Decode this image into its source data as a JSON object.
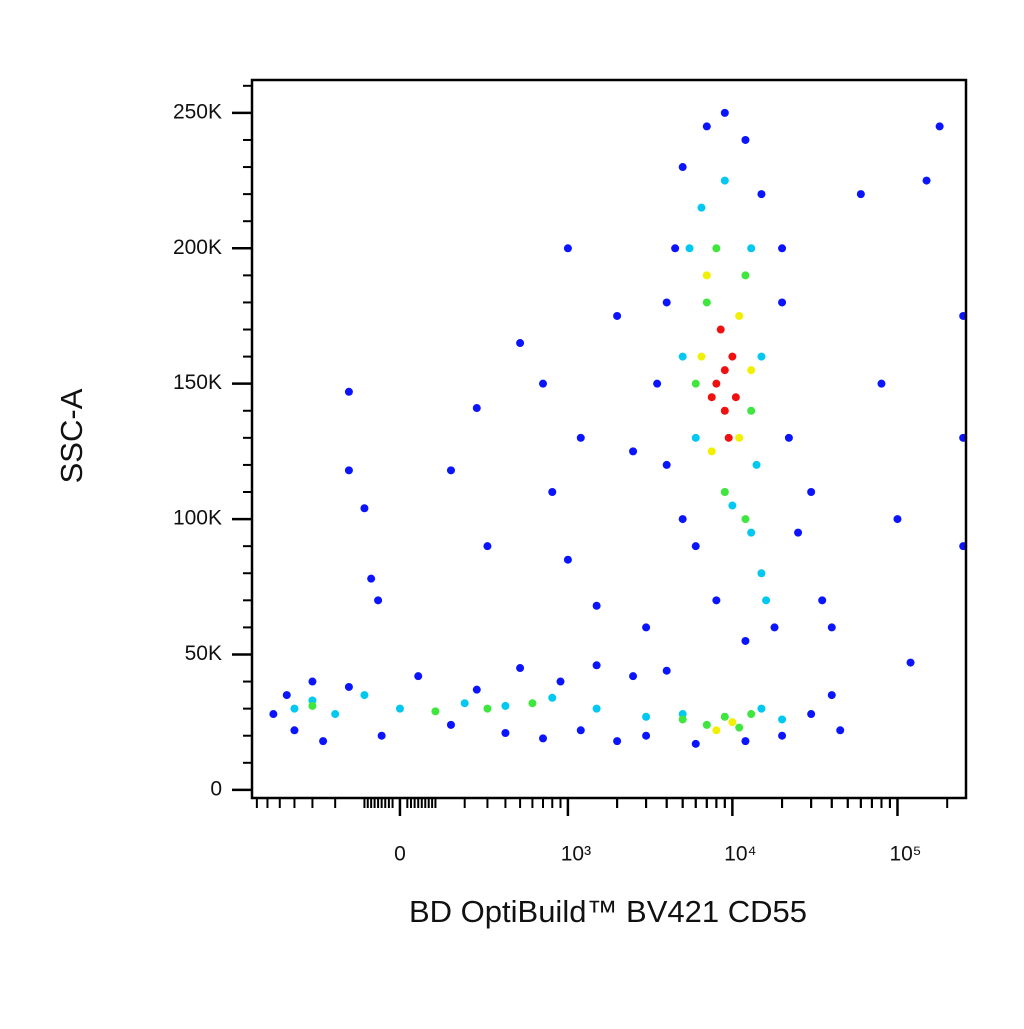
{
  "chart_data": {
    "type": "scatter",
    "xlabel": "BD OptiBuild™ BV421 CD55",
    "ylabel": "SSC-A",
    "xscale": "biexponential",
    "xlim": [
      -751,
      260000
    ],
    "ylim": [
      -3000,
      262144
    ],
    "xticks": [
      0,
      {
        "value": 1000,
        "label": "10³"
      },
      {
        "value": 10000,
        "label": "10⁴"
      },
      {
        "value": 100000,
        "label": "10⁵"
      }
    ],
    "yticks": [
      0,
      {
        "value": 50000,
        "label": "50K"
      },
      {
        "value": 100000,
        "label": "100K"
      },
      {
        "value": 150000,
        "label": "150K"
      },
      {
        "value": 200000,
        "label": "200K"
      },
      {
        "value": 250000,
        "label": "250K"
      }
    ],
    "series": [
      {
        "color": "#0a14ff",
        "x": [
          -550,
          -450,
          -400,
          -300,
          -250,
          -150,
          -50,
          50,
          150,
          250,
          400,
          500,
          700,
          900,
          1200,
          1500,
          2000,
          2500,
          3000,
          4000,
          6000,
          12000,
          20000,
          30000,
          40000,
          45000,
          3500,
          4000,
          4500,
          5000,
          6000,
          7000,
          9000,
          12000,
          15000,
          20000,
          22000,
          25000,
          30000,
          35000,
          40000,
          18000,
          12000,
          8000,
          20000,
          4000,
          5000,
          -150,
          -150,
          -100,
          -80,
          -60,
          150,
          250,
          300,
          500,
          700,
          800,
          1000,
          1200,
          1500,
          2000,
          2500,
          3000,
          1000,
          60000,
          80000,
          100000,
          150000,
          180000,
          120000,
          250000,
          250000,
          250000
        ],
        "values": [
          28000,
          35000,
          22000,
          40000,
          18000,
          38000,
          20000,
          42000,
          24000,
          37000,
          21000,
          45000,
          19000,
          40000,
          22000,
          46000,
          18000,
          42000,
          20000,
          44000,
          17000,
          18000,
          20000,
          28000,
          35000,
          22000,
          150000,
          120000,
          200000,
          230000,
          90000,
          245000,
          250000,
          240000,
          220000,
          180000,
          130000,
          95000,
          110000,
          70000,
          60000,
          60000,
          55000,
          70000,
          200000,
          180000,
          100000,
          147000,
          118000,
          104000,
          78000,
          70000,
          118000,
          141000,
          90000,
          165000,
          150000,
          110000,
          85000,
          130000,
          68000,
          175000,
          125000,
          60000,
          200000,
          220000,
          150000,
          100000,
          225000,
          245000,
          47000,
          175000,
          90000,
          130000
        ]
      },
      {
        "color": "#00c8f0",
        "x": [
          -400,
          -300,
          -200,
          -100,
          0,
          200,
          400,
          800,
          1500,
          3000,
          5000,
          15000,
          20000,
          5000,
          5500,
          6500,
          9000,
          13000,
          15000,
          14000,
          13000,
          15000,
          10000,
          6000,
          16000
        ],
        "values": [
          30000,
          33000,
          28000,
          35000,
          30000,
          32000,
          31000,
          34000,
          30000,
          27000,
          28000,
          30000,
          26000,
          160000,
          200000,
          215000,
          225000,
          200000,
          160000,
          120000,
          95000,
          80000,
          105000,
          130000,
          70000
        ]
      },
      {
        "color": "#3ee63e",
        "x": [
          -300,
          100,
          300,
          600,
          5000,
          7000,
          9000,
          11000,
          13000,
          7000,
          12000,
          6000,
          13000,
          9000,
          12000,
          8000
        ],
        "values": [
          31000,
          29000,
          30000,
          32000,
          26000,
          24000,
          27000,
          23000,
          28000,
          180000,
          190000,
          150000,
          140000,
          110000,
          100000,
          200000
        ]
      },
      {
        "color": "#f0f000",
        "x": [
          8000,
          10000,
          7000,
          11000,
          7500,
          11000,
          6500,
          13000
        ],
        "values": [
          22000,
          25000,
          190000,
          175000,
          125000,
          130000,
          160000,
          155000
        ]
      },
      {
        "color": "#f01010",
        "x": [
          8000,
          9000,
          10000,
          8500,
          9500,
          10500,
          7500,
          9000
        ],
        "values": [
          150000,
          140000,
          160000,
          170000,
          130000,
          145000,
          145000,
          155000
        ]
      }
    ]
  }
}
